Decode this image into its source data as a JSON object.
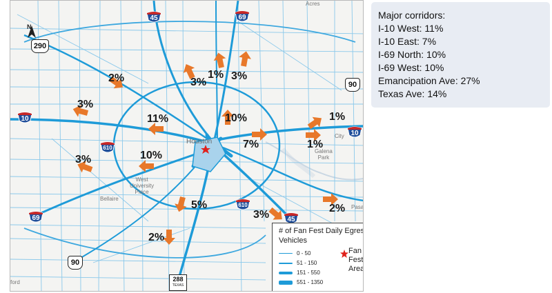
{
  "summary": {
    "title": "Major corridors:",
    "items": [
      "I-10 West: 11%",
      "I-10 East: 7%",
      "I-69 North: 10%",
      "I-69 West: 10%",
      "Emancipation Ave: 27%",
      "Texas Ave: 14%"
    ]
  },
  "map": {
    "north_label": "N",
    "percentages": [
      "2%",
      "3%",
      "1%",
      "3%",
      "3%",
      "10%",
      "11%",
      "1%",
      "7%",
      "1%",
      "10%",
      "3%",
      "5%",
      "3%",
      "2%",
      "2%"
    ],
    "places": {
      "houston": "Houston",
      "galena_park": "Galena\nPark",
      "west_university": "West\nUniversity\nPlace",
      "bellaire": "Bellaire",
      "acres": "Acres",
      "pasadena": "Pasa",
      "ford": "ford",
      "city": "City"
    },
    "shields": {
      "i45_north": "45",
      "i69_north": "69",
      "us290": "290",
      "i10_west": "10",
      "i10_east": "10",
      "us90_east": "90",
      "i610_west": "610",
      "i610_south": "610",
      "i45_south": "45",
      "i69_south": "69",
      "us90_south": "90",
      "sh288": "288",
      "sh288_state": "TEXAS"
    },
    "colors": {
      "road": "#1e9bd8",
      "arrow": "#e8782a",
      "fan_fest_star": "#e0211b",
      "interstate_shield": "#1f4e9a"
    }
  },
  "legend": {
    "title": "# of Fan Fest Daily Egress Vehicles",
    "ranges": [
      "0 - 50",
      "51 - 150",
      "151 - 550",
      "551 - 1350"
    ],
    "fan_fest_label": "Fan Fest Area"
  }
}
